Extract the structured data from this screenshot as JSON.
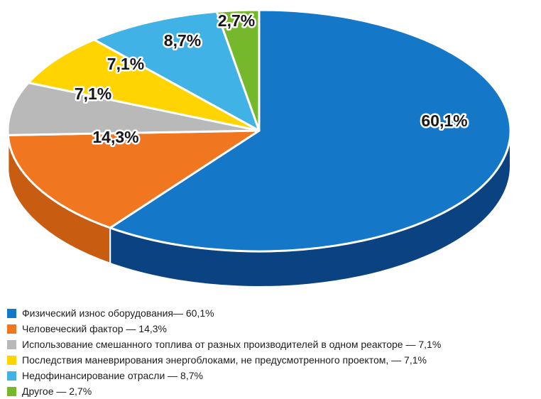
{
  "page": {
    "background": "#ffffff"
  },
  "chart_data": {
    "type": "pie",
    "style": "3d",
    "title": "",
    "unit": "%",
    "start_angle_deg": 0,
    "direction": "clockwise",
    "legend_position": "bottom-left",
    "categories": [
      "Физический износ оборудования",
      "Человеческий фактор",
      "Использование смешанного топлива от разных производителей в одном реакторе",
      "Последствия маневрирования энергоблоками, не предусмотренного проектом",
      "Недофинансирование отрасли",
      "Другое"
    ],
    "values": [
      60.1,
      14.3,
      7.1,
      7.1,
      8.7,
      2.7
    ],
    "slices": [
      {
        "label": "Физический износ оборудования",
        "value": 60.1,
        "display": "60,1%",
        "color": "#1577c8",
        "side_color": "#0b4281",
        "legend_text": "Физический износ оборудования— 60,1%"
      },
      {
        "label": "Человеческий фактор",
        "value": 14.3,
        "display": "14,3%",
        "color": "#f0771f",
        "side_color": "#c85c10",
        "legend_text": "Человеческий фактор — 14,3%"
      },
      {
        "label": "Использование смешанного топлива от разных производителей в одном реакторе",
        "value": 7.1,
        "display": "7,1%",
        "color": "#b9b9b9",
        "side_color": "#9a9a9a",
        "legend_text": "Использование смешанного топлива от разных производителей в одном реакторе — 7,1%"
      },
      {
        "label": "Последствия маневрирования энергоблоками, не предусмотренного проектом",
        "value": 7.1,
        "display": "7,1%",
        "color": "#ffd400",
        "side_color": "#d4a900",
        "legend_text": "Последствия маневрирования энергоблоками, не предусмотренного проектом, — 7,1%"
      },
      {
        "label": "Недофинансирование отрасли",
        "value": 8.7,
        "display": "8,7%",
        "color": "#41b2e6",
        "side_color": "#2d8cbf",
        "legend_text": "Недофинансирование отрасли — 8,7%"
      },
      {
        "label": "Другое",
        "value": 2.7,
        "display": "2,7%",
        "color": "#76b82c",
        "side_color": "#5a9420",
        "legend_text": "Другое — 2,7%"
      }
    ]
  }
}
